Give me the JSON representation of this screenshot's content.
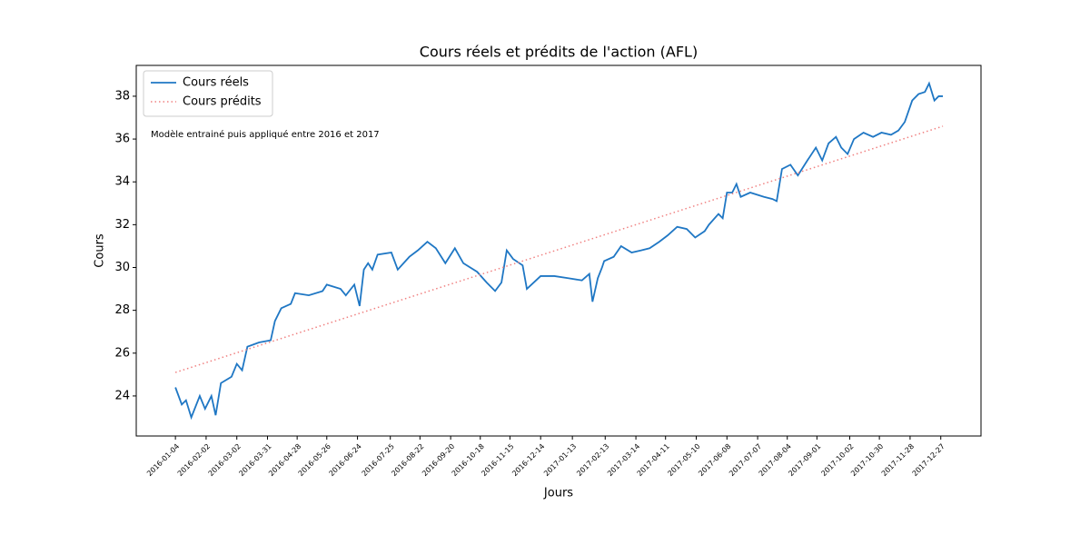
{
  "chart_data": {
    "type": "line",
    "title": "Cours réels et prédits de l'action (AFL)",
    "x_label": "Jours",
    "y_label": "Cours",
    "annotation": "Modèle entrainé puis appliqué entre 2016 et 2017",
    "legend": "upper left",
    "xlim": [
      "2015-11-28",
      "2018-02-03"
    ],
    "ylim": [
      22.13,
      39.44
    ],
    "yticks": [
      24,
      26,
      28,
      30,
      32,
      34,
      36,
      38
    ],
    "xticks": [
      "2016-01-04",
      "2016-02-02",
      "2016-03-02",
      "2016-03-31",
      "2016-04-28",
      "2016-05-26",
      "2016-06-24",
      "2016-07-25",
      "2016-08-22",
      "2016-09-20",
      "2016-10-18",
      "2016-11-15",
      "2016-12-14",
      "2017-01-13",
      "2017-02-13",
      "2017-03-14",
      "2017-04-11",
      "2017-05-10",
      "2017-06-08",
      "2017-07-07",
      "2017-08-04",
      "2017-09-01",
      "2017-10-02",
      "2017-10-30",
      "2017-11-28",
      "2017-12-27"
    ],
    "x": [
      "2016-01-04",
      "2016-01-10",
      "2016-01-14",
      "2016-01-19",
      "2016-01-27",
      "2016-02-01",
      "2016-02-07",
      "2016-02-11",
      "2016-02-16",
      "2016-02-26",
      "2016-03-02",
      "2016-03-07",
      "2016-03-12",
      "2016-03-23",
      "2016-04-03",
      "2016-04-07",
      "2016-04-13",
      "2016-04-22",
      "2016-04-26",
      "2016-05-09",
      "2016-05-22",
      "2016-05-26",
      "2016-06-08",
      "2016-06-13",
      "2016-06-21",
      "2016-06-26",
      "2016-06-30",
      "2016-07-04",
      "2016-07-08",
      "2016-07-13",
      "2016-07-26",
      "2016-08-01",
      "2016-08-12",
      "2016-08-20",
      "2016-08-29",
      "2016-09-06",
      "2016-09-15",
      "2016-09-24",
      "2016-10-02",
      "2016-10-15",
      "2016-10-24",
      "2016-11-01",
      "2016-11-07",
      "2016-11-12",
      "2016-11-18",
      "2016-11-27",
      "2016-12-01",
      "2016-12-14",
      "2016-12-27",
      "2017-01-09",
      "2017-01-22",
      "2017-01-29",
      "2017-02-01",
      "2017-02-06",
      "2017-02-10",
      "2017-02-12",
      "2017-02-21",
      "2017-02-28",
      "2017-03-10",
      "2017-03-19",
      "2017-03-27",
      "2017-04-05",
      "2017-04-13",
      "2017-04-22",
      "2017-05-01",
      "2017-05-09",
      "2017-05-18",
      "2017-05-22",
      "2017-05-31",
      "2017-06-04",
      "2017-06-08",
      "2017-06-13",
      "2017-06-17",
      "2017-06-21",
      "2017-06-30",
      "2017-07-13",
      "2017-07-21",
      "2017-07-25",
      "2017-07-30",
      "2017-08-07",
      "2017-08-14",
      "2017-08-23",
      "2017-08-31",
      "2017-09-06",
      "2017-09-12",
      "2017-09-19",
      "2017-09-24",
      "2017-09-30",
      "2017-10-06",
      "2017-10-15",
      "2017-10-24",
      "2017-11-01",
      "2017-11-10",
      "2017-11-17",
      "2017-11-23",
      "2017-11-30",
      "2017-12-06",
      "2017-12-12",
      "2017-12-16",
      "2017-12-21",
      "2017-12-25",
      "2017-12-29"
    ],
    "series": [
      {
        "name": "Cours réels",
        "color": "#1f77c4",
        "style": "solid",
        "values": [
          24.4,
          23.6,
          23.8,
          23.0,
          24.0,
          23.4,
          24.0,
          23.1,
          24.6,
          24.9,
          25.5,
          25.2,
          26.3,
          26.5,
          26.6,
          27.5,
          28.1,
          28.3,
          28.8,
          28.7,
          28.9,
          29.2,
          29.0,
          28.7,
          29.2,
          28.2,
          29.9,
          30.2,
          29.9,
          30.6,
          30.7,
          29.9,
          30.5,
          30.8,
          31.2,
          30.9,
          30.2,
          30.9,
          30.2,
          29.8,
          29.3,
          28.9,
          29.3,
          30.8,
          30.4,
          30.1,
          29.0,
          29.6,
          29.6,
          29.5,
          29.4,
          29.7,
          28.4,
          29.5,
          30.0,
          30.3,
          30.5,
          31.0,
          30.7,
          30.8,
          30.9,
          31.2,
          31.5,
          31.9,
          31.8,
          31.4,
          31.7,
          32.0,
          32.5,
          32.3,
          33.5,
          33.5,
          33.9,
          33.3,
          33.5,
          33.3,
          33.2,
          33.1,
          34.6,
          34.8,
          34.3,
          35.0,
          35.6,
          35.0,
          35.8,
          36.1,
          35.6,
          35.3,
          36.0,
          36.3,
          36.1,
          36.3,
          36.2,
          36.4,
          36.8,
          37.8,
          38.1,
          38.2,
          38.6,
          37.8,
          38.0,
          38.0
        ]
      },
      {
        "name": "Cours prédits",
        "color": "#f08080",
        "style": "dotted",
        "x": [
          "2016-01-04",
          "2017-12-29"
        ],
        "values": [
          25.1,
          36.6
        ]
      }
    ]
  }
}
